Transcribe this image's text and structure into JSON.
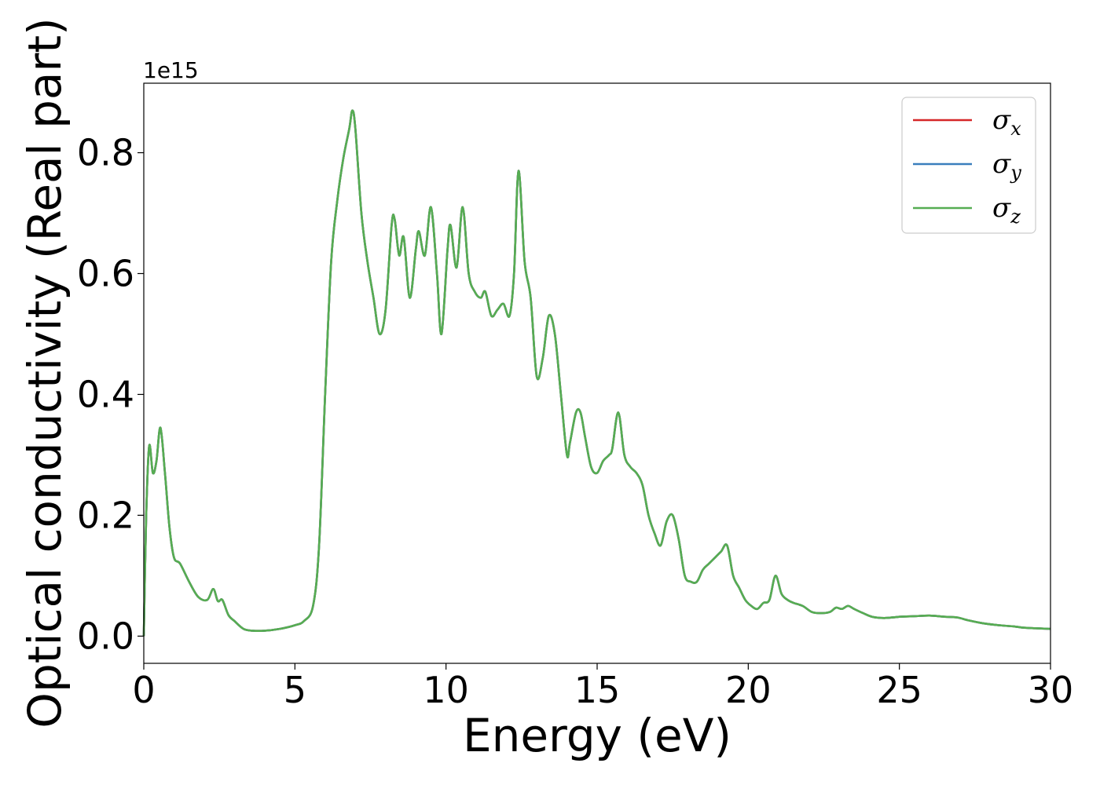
{
  "chart_data": {
    "type": "line",
    "xlabel": "Energy (eV)",
    "ylabel": "Optical conductivity (Real part)",
    "y_offset_text": "1e15",
    "xlim": [
      0,
      30
    ],
    "ylim": [
      -0.045,
      0.915
    ],
    "y_scale_factor": 1000000000000000.0,
    "x_ticks": [
      0,
      5,
      10,
      15,
      20,
      25,
      30
    ],
    "x_tick_labels": [
      "0",
      "5",
      "10",
      "15",
      "20",
      "25",
      "30"
    ],
    "y_ticks": [
      0.0,
      0.2,
      0.4,
      0.6,
      0.8
    ],
    "y_tick_labels": [
      "0.0",
      "0.2",
      "0.4",
      "0.6",
      "0.8"
    ],
    "grid": false,
    "legend_position": "top-right",
    "x": [
      0.0,
      0.08,
      0.18,
      0.3,
      0.42,
      0.55,
      0.7,
      0.85,
      1.0,
      1.2,
      1.5,
      1.8,
      2.1,
      2.3,
      2.45,
      2.6,
      2.8,
      3.0,
      3.3,
      3.6,
      4.0,
      4.5,
      5.0,
      5.3,
      5.6,
      5.8,
      6.0,
      6.2,
      6.4,
      6.6,
      6.8,
      6.9,
      7.0,
      7.2,
      7.4,
      7.6,
      7.8,
      8.0,
      8.2,
      8.3,
      8.45,
      8.6,
      8.8,
      9.0,
      9.1,
      9.3,
      9.5,
      9.7,
      9.85,
      10.05,
      10.15,
      10.35,
      10.55,
      10.75,
      10.95,
      11.15,
      11.3,
      11.5,
      11.7,
      11.9,
      12.1,
      12.25,
      12.4,
      12.6,
      12.8,
      13.0,
      13.2,
      13.4,
      13.6,
      13.8,
      14.0,
      14.1,
      14.3,
      14.45,
      14.6,
      14.8,
      15.0,
      15.2,
      15.4,
      15.5,
      15.7,
      15.9,
      16.1,
      16.3,
      16.5,
      16.7,
      16.9,
      17.1,
      17.3,
      17.5,
      17.7,
      17.9,
      18.1,
      18.3,
      18.5,
      18.7,
      18.9,
      19.1,
      19.3,
      19.5,
      19.7,
      19.9,
      20.1,
      20.3,
      20.5,
      20.7,
      20.9,
      21.1,
      21.3,
      21.5,
      21.8,
      22.1,
      22.4,
      22.7,
      22.9,
      23.1,
      23.3,
      23.5,
      23.8,
      24.1,
      24.5,
      25.0,
      25.5,
      26.0,
      26.5,
      26.9,
      27.3,
      27.8,
      28.3,
      28.8,
      29.1,
      29.5,
      30.0
    ],
    "series": [
      {
        "name": "σ_x",
        "legend_label": "σx",
        "symbol": "σ",
        "subscript": "x",
        "color": "#d62728",
        "shares_data_with": "σ_z"
      },
      {
        "name": "σ_y",
        "legend_label": "σy",
        "symbol": "σ",
        "subscript": "y",
        "color": "#3a7fbd",
        "shares_data_with": "σ_z"
      },
      {
        "name": "σ_z",
        "legend_label": "σz",
        "symbol": "σ",
        "subscript": "z",
        "color": "#56ad52",
        "values": [
          0.0,
          0.2,
          0.315,
          0.27,
          0.29,
          0.345,
          0.27,
          0.18,
          0.13,
          0.12,
          0.09,
          0.065,
          0.06,
          0.078,
          0.058,
          0.06,
          0.035,
          0.025,
          0.012,
          0.009,
          0.009,
          0.012,
          0.018,
          0.025,
          0.05,
          0.15,
          0.4,
          0.62,
          0.72,
          0.79,
          0.84,
          0.87,
          0.84,
          0.7,
          0.62,
          0.56,
          0.5,
          0.54,
          0.68,
          0.69,
          0.63,
          0.66,
          0.56,
          0.64,
          0.67,
          0.63,
          0.71,
          0.6,
          0.5,
          0.64,
          0.68,
          0.61,
          0.71,
          0.6,
          0.57,
          0.56,
          0.57,
          0.53,
          0.54,
          0.55,
          0.53,
          0.6,
          0.77,
          0.62,
          0.56,
          0.43,
          0.46,
          0.53,
          0.5,
          0.4,
          0.3,
          0.32,
          0.37,
          0.37,
          0.33,
          0.28,
          0.27,
          0.29,
          0.3,
          0.31,
          0.37,
          0.3,
          0.28,
          0.27,
          0.25,
          0.2,
          0.17,
          0.15,
          0.19,
          0.2,
          0.16,
          0.1,
          0.09,
          0.09,
          0.11,
          0.12,
          0.13,
          0.14,
          0.15,
          0.1,
          0.08,
          0.06,
          0.05,
          0.045,
          0.055,
          0.06,
          0.1,
          0.07,
          0.06,
          0.055,
          0.05,
          0.04,
          0.038,
          0.04,
          0.047,
          0.045,
          0.05,
          0.045,
          0.038,
          0.032,
          0.03,
          0.032,
          0.033,
          0.034,
          0.032,
          0.031,
          0.026,
          0.021,
          0.018,
          0.016,
          0.014,
          0.013,
          0.012
        ]
      }
    ]
  }
}
